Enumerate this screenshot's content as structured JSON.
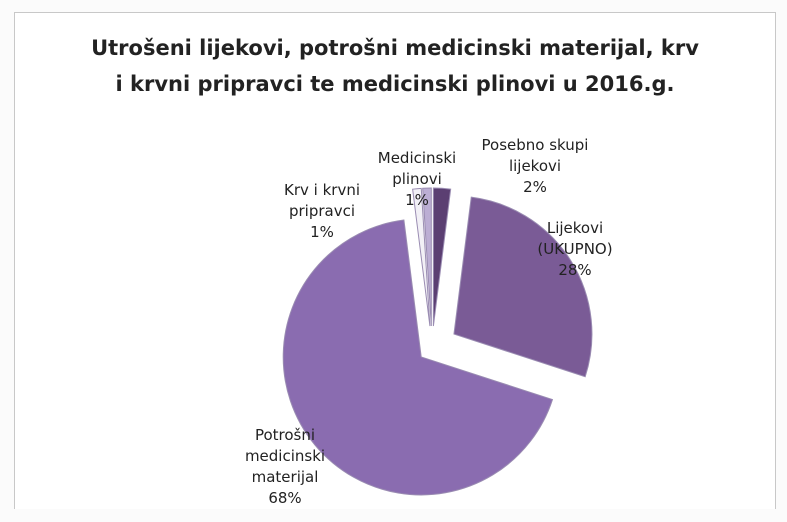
{
  "chart_data": {
    "type": "pie",
    "title": "Utrošeni lijekovi, potrošni medicinski materijal, krv i krvni pripravci te medicinski plinovi u 2016.g.",
    "categories": [
      "Posebno skupi lijekovi",
      "Lijekovi (UKUPNO)",
      "Potrošni medicinski materijal",
      "Krv i krvni pripravci",
      "Medicinski plinovi"
    ],
    "values": [
      2,
      28,
      68,
      1,
      1
    ],
    "value_labels": [
      "2%",
      "28%",
      "68%",
      "1%",
      "1%"
    ],
    "colors": [
      "#5b3f72",
      "#7a5b96",
      "#8a6cb0",
      "#f2f0f6",
      "#bcaed4"
    ]
  }
}
